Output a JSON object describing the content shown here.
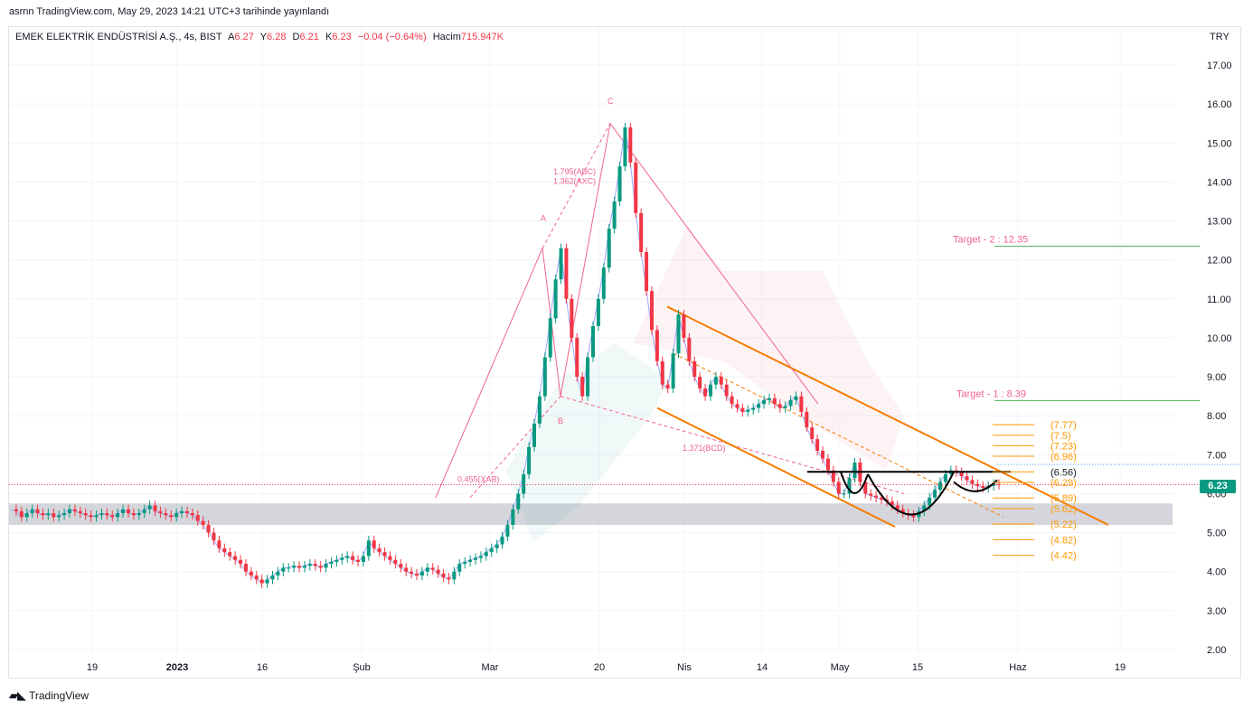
{
  "header": {
    "published_line": "asrnn TradingView.com, May 29, 2023 14:21 UTC+3 tarihinde yayınlandı"
  },
  "legend": {
    "symbol": "EMEK ELEKTRİK ENDÜSTRİSİ A.Ş., 4s, BIST",
    "open_label": "A",
    "open": "6.27",
    "high_label": "Y",
    "high": "6.28",
    "low_label": "D",
    "low": "6.21",
    "close_label": "K",
    "close": "6.23",
    "change": "−0.04 (−0.64%)",
    "volume_label": "Hacim",
    "volume": "715.947K"
  },
  "currency": "TRY",
  "last_price_tag": "6.23",
  "footer": {
    "brand": "TradingView",
    "logo": "tradingview-logo-icon"
  },
  "colors": {
    "up": "#089981",
    "down": "#f23645",
    "channel": "#f57c00",
    "fib": "#ff9800",
    "target": "#4caf50",
    "harmonic": "#f06292"
  },
  "chart_data": {
    "type": "line",
    "title": "",
    "ylim": [
      1.7,
      17.7
    ],
    "y_ticks": [
      "17.00",
      "16.00",
      "15.00",
      "14.00",
      "13.00",
      "12.00",
      "11.00",
      "10.00",
      "9.00",
      "8.00",
      "7.00",
      "6.00",
      "5.00",
      "4.00",
      "3.00",
      "2.00"
    ],
    "x_ticks": [
      "19",
      "2023",
      "16",
      "Şub",
      "Mar",
      "20",
      "Nis",
      "14",
      "May",
      "15",
      "Haz",
      "19"
    ],
    "series": [
      {
        "values": [
          5.6,
          5.55,
          5.4,
          5.5,
          5.6,
          5.5,
          5.45,
          5.5,
          5.4,
          5.45,
          5.5,
          5.6,
          5.55,
          5.5,
          5.45,
          5.4,
          5.45,
          5.5,
          5.45,
          5.4,
          5.5,
          5.6,
          5.5,
          5.45,
          5.5,
          5.6,
          5.7,
          5.55,
          5.5,
          5.45,
          5.4,
          5.5,
          5.55,
          5.5,
          5.45,
          5.3,
          5.2,
          5.0,
          4.8,
          4.6,
          4.5,
          4.4,
          4.3,
          4.2,
          4.0,
          3.9,
          3.8,
          3.7,
          3.8,
          3.9,
          4.0,
          4.1,
          4.1,
          4.15,
          4.1,
          4.15,
          4.2,
          4.15,
          4.1,
          4.2,
          4.25,
          4.3,
          4.35,
          4.4,
          4.3,
          4.25,
          4.4,
          4.8,
          4.6,
          4.5,
          4.4,
          4.3,
          4.2,
          4.1,
          4.0,
          3.95,
          3.9,
          4.0,
          4.1,
          4.05,
          3.95,
          3.85,
          3.8,
          4.0,
          4.2,
          4.25,
          4.3,
          4.35,
          4.4,
          4.5,
          4.6,
          4.7,
          4.9,
          5.2,
          5.6,
          6.0,
          6.5,
          7.2,
          7.8,
          8.5,
          9.5,
          10.5,
          11.5,
          12.3,
          11.0,
          10.0,
          9.0,
          8.5,
          9.5,
          10.3,
          11.0,
          11.8,
          12.8,
          13.5,
          14.4,
          15.4,
          14.5,
          13.2,
          12.2,
          11.2,
          10.2,
          9.4,
          8.8,
          8.7,
          9.6,
          10.6,
          10.0,
          9.4,
          9.0,
          8.7,
          8.5,
          8.8,
          9.0,
          8.8,
          8.5,
          8.3,
          8.2,
          8.1,
          8.15,
          8.2,
          8.3,
          8.4,
          8.45,
          8.3,
          8.2,
          8.25,
          8.4,
          8.5,
          8.1,
          7.7,
          7.4,
          7.1,
          6.9,
          6.6,
          6.3,
          6.0,
          6.0,
          6.4,
          6.8,
          6.3,
          6.0,
          5.95,
          5.9,
          5.85,
          5.8,
          5.7,
          5.6,
          5.5,
          5.45,
          5.4,
          5.55,
          5.7,
          5.9,
          6.1,
          6.3,
          6.5,
          6.6,
          6.55,
          6.45,
          6.35,
          6.25,
          6.2,
          6.15,
          6.2,
          6.25,
          6.23
        ]
      }
    ],
    "annotations": {
      "harmonic_points": [
        "A",
        "B",
        "C"
      ],
      "harmonic_ratios": [
        "1.795(ABC)",
        "1.362(AXC)",
        "1.371(BCD)",
        "0.455(XAB)"
      ],
      "targets": [
        {
          "label": "Target - 2 : 12.35",
          "value": 12.35
        },
        {
          "label": "Target - 1 : 8.39",
          "value": 8.39
        }
      ],
      "fib_levels": [
        7.77,
        7.5,
        7.23,
        6.96,
        6.56,
        6.29,
        5.89,
        5.62,
        5.22,
        4.82,
        4.42
      ],
      "fib_labels": [
        "(7.77)",
        "(7.5)",
        "(7.23)",
        "(6.96)",
        "(6.56)",
        "(6.29)",
        "(5.89)",
        "(5.62)",
        "(5.22)",
        "(4.82)",
        "(4.42)"
      ],
      "support_zone": [
        5.2,
        5.75
      ],
      "pattern": "cup and handle"
    }
  }
}
